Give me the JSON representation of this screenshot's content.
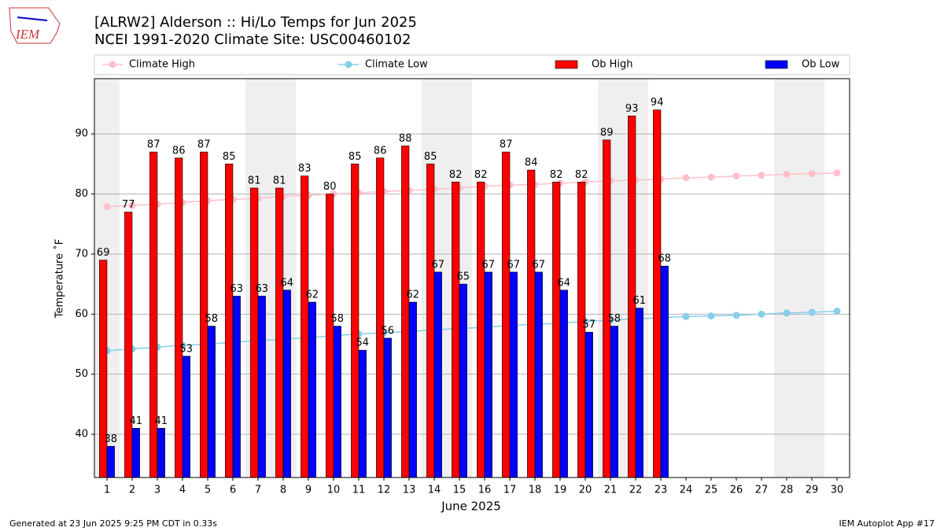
{
  "logo": "IEM",
  "chart_data": {
    "type": "bar",
    "title": "[ALRW2] Alderson :: Hi/Lo Temps for Jun 2025",
    "subtitle": "NCEI 1991-2020 Climate Site: USC00460102",
    "x_label": "June 2025",
    "y_label": "Temperature ˚F",
    "x": [
      1,
      2,
      3,
      4,
      5,
      6,
      7,
      8,
      9,
      10,
      11,
      12,
      13,
      14,
      15,
      16,
      17,
      18,
      19,
      20,
      21,
      22,
      23,
      24,
      25,
      26,
      27,
      28,
      29,
      30
    ],
    "xlim": [
      0.5,
      30.5
    ],
    "xticks": [
      1,
      2,
      3,
      4,
      5,
      6,
      7,
      8,
      9,
      10,
      11,
      12,
      13,
      14,
      15,
      16,
      17,
      18,
      19,
      20,
      21,
      22,
      23,
      24,
      25,
      26,
      27,
      28,
      29,
      30
    ],
    "ylim": [
      32.8,
      99.2
    ],
    "yticks": [
      40,
      50,
      60,
      70,
      80,
      90
    ],
    "grid": true,
    "series": [
      {
        "name": "Climate High",
        "type": "line",
        "color": "#ffc0cb",
        "values": [
          77.9,
          78.1,
          78.3,
          78.6,
          78.9,
          79.1,
          79.3,
          79.6,
          79.8,
          80.0,
          80.2,
          80.4,
          80.6,
          80.8,
          81.0,
          81.3,
          81.5,
          81.6,
          81.8,
          82.0,
          82.2,
          82.3,
          82.5,
          82.7,
          82.8,
          83.0,
          83.1,
          83.3,
          83.4,
          83.5
        ]
      },
      {
        "name": "Climate Low",
        "type": "line",
        "color": "#87ceeb",
        "values": [
          53.9,
          54.2,
          54.5,
          54.8,
          55.0,
          55.3,
          55.6,
          55.8,
          56.1,
          56.4,
          56.7,
          56.9,
          57.1,
          57.4,
          57.6,
          57.8,
          58.1,
          58.3,
          58.5,
          58.8,
          59.0,
          59.2,
          59.4,
          59.6,
          59.7,
          59.8,
          60.0,
          60.2,
          60.3,
          60.5
        ]
      },
      {
        "name": "Ob High",
        "type": "bar",
        "color": "#ff0000",
        "values": [
          69,
          77,
          87,
          86,
          87,
          85,
          81,
          81,
          83,
          80,
          85,
          86,
          88,
          85,
          82,
          82,
          87,
          84,
          82,
          82,
          89,
          93,
          94,
          null,
          null,
          null,
          null,
          null,
          null,
          null
        ]
      },
      {
        "name": "Ob Low",
        "type": "bar",
        "color": "#0000ff",
        "values": [
          38,
          41,
          41,
          53,
          58,
          63,
          63,
          64,
          62,
          58,
          54,
          56,
          62,
          67,
          65,
          67,
          67,
          67,
          64,
          57,
          58,
          61,
          68,
          null,
          null,
          null,
          null,
          null,
          null,
          null
        ]
      }
    ]
  },
  "footer": {
    "left": "Generated at 23 Jun 2025 9:25 PM CDT in 0.33s",
    "right": "IEM Autoplot App #17"
  }
}
